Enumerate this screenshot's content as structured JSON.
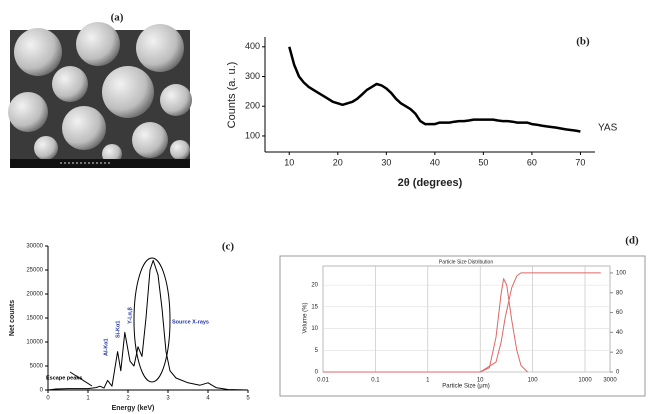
{
  "panel_a": {
    "label": "(a)"
  },
  "chart_data": [
    {
      "type": "line",
      "panel": "(b)",
      "ylabel": "Counts (a. u.)",
      "xlabel": "2θ (degrees)",
      "xlim": [
        5,
        73
      ],
      "ylim": [
        46,
        433
      ],
      "xticks": [
        10,
        20,
        30,
        40,
        50,
        60,
        70
      ],
      "yticks": [
        100,
        200,
        300,
        400
      ],
      "grid": false,
      "series": [
        {
          "name": "YAS",
          "color": "#000000",
          "x": [
            10,
            11,
            12,
            13,
            14,
            15,
            16,
            17,
            18,
            19,
            20,
            21,
            22,
            23,
            24,
            25,
            26,
            27,
            28,
            29,
            30,
            31,
            32,
            33,
            34,
            35,
            36,
            37,
            38,
            39,
            40,
            41,
            42,
            43,
            44,
            45,
            46,
            47,
            48,
            49,
            50,
            51,
            52,
            53,
            54,
            55,
            56,
            57,
            58,
            59,
            60,
            61,
            62,
            63,
            64,
            65,
            66,
            67,
            68,
            69,
            70
          ],
          "values": [
            400,
            340,
            300,
            280,
            265,
            255,
            245,
            235,
            225,
            215,
            210,
            205,
            210,
            215,
            225,
            240,
            255,
            265,
            275,
            270,
            260,
            245,
            225,
            210,
            200,
            190,
            175,
            150,
            140,
            140,
            140,
            145,
            145,
            145,
            148,
            150,
            150,
            152,
            155,
            155,
            155,
            155,
            155,
            152,
            150,
            150,
            148,
            145,
            145,
            145,
            140,
            138,
            135,
            132,
            130,
            128,
            125,
            122,
            120,
            118,
            115
          ]
        }
      ]
    },
    {
      "type": "line",
      "panel": "(c)",
      "ylabel": "Net counts",
      "xlabel": "Energy (keV)",
      "xlim": [
        0,
        5
      ],
      "ylim": [
        0,
        30000
      ],
      "xticks": [
        0,
        1,
        2,
        3,
        4,
        5
      ],
      "yticks": [
        0,
        5000,
        10000,
        15000,
        20000,
        25000,
        30000
      ],
      "grid": false,
      "annotations": [
        "Escape peaks",
        "Al-Kα1",
        "Si-Kα1",
        "Y-Lα,β",
        "Source X-rays"
      ],
      "series": [
        {
          "color": "#000000",
          "x": [
            0,
            0.2,
            0.5,
            1.0,
            1.2,
            1.3,
            1.4,
            1.49,
            1.6,
            1.74,
            1.82,
            1.92,
            2.05,
            2.15,
            2.25,
            2.35,
            2.45,
            2.55,
            2.63,
            2.75,
            2.85,
            2.95,
            3.05,
            3.2,
            3.5,
            3.8,
            4.0,
            4.2,
            4.5,
            5
          ],
          "values": [
            0,
            200,
            300,
            300,
            500,
            800,
            400,
            2000,
            800,
            8000,
            4000,
            12000,
            6000,
            5000,
            9000,
            7000,
            15000,
            25000,
            27000,
            24000,
            17000,
            8000,
            4000,
            2500,
            1500,
            1000,
            1500,
            500,
            100,
            0
          ]
        }
      ]
    },
    {
      "type": "line",
      "panel": "(d)",
      "title": "Particle Size Distribution",
      "ylabel": "Volume (%)",
      "xlabel": "Particle Size (μm)",
      "xscale": "log",
      "grid": true,
      "xlim": [
        0.01,
        3000
      ],
      "ylim": [
        0,
        24.4
      ],
      "y2lim": [
        0,
        107
      ],
      "xticks": [
        0.01,
        0.1,
        1,
        10,
        100,
        1000,
        3000
      ],
      "yticks": [
        0,
        5,
        10,
        15,
        20
      ],
      "y2ticks": [
        0,
        20,
        40,
        60,
        80,
        100
      ],
      "series": [
        {
          "color": "#e06666",
          "x": [
            0.01,
            10,
            15,
            20,
            25,
            28,
            32,
            40,
            50,
            60,
            80
          ],
          "values": [
            0,
            0,
            1,
            8,
            18,
            21.5,
            20,
            12,
            5,
            1.5,
            0
          ]
        },
        {
          "color": "#e06666",
          "axis": "y2",
          "x": [
            0.01,
            10,
            20,
            25,
            30,
            40,
            50,
            60,
            2000
          ],
          "values": [
            0,
            0,
            10,
            30,
            55,
            85,
            97,
            100,
            100
          ]
        }
      ]
    }
  ]
}
